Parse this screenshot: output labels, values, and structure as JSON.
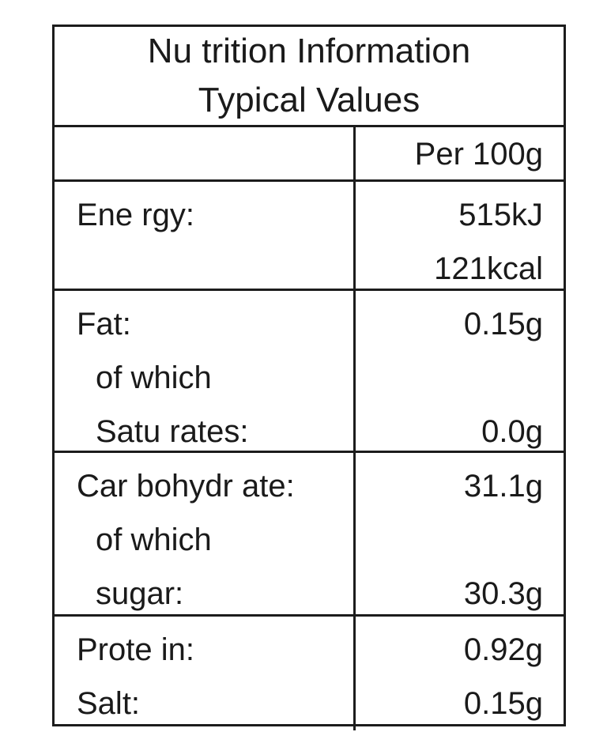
{
  "title": {
    "line1": "Nu trition Information",
    "line2": "Typical Values"
  },
  "header": {
    "left": "",
    "right": "Per 100g"
  },
  "energy": {
    "label": "Ene rgy:",
    "kj": "515kJ",
    "kcal": "121kcal"
  },
  "fat": {
    "label": "Fat:",
    "value": "0.15g",
    "sub_label_1": "of which",
    "sub_label_2": "Satu rates:",
    "sub_value": "0.0g"
  },
  "carbohydrate": {
    "label": "Car bohydr ate:",
    "value": "31.1g",
    "sub_label_1": "of which",
    "sub_label_2": "sugar:",
    "sub_value": "30.3g"
  },
  "protein": {
    "label": "Prote in:",
    "value": "0.92g"
  },
  "salt": {
    "label": "Salt:",
    "value": "0.15g"
  }
}
